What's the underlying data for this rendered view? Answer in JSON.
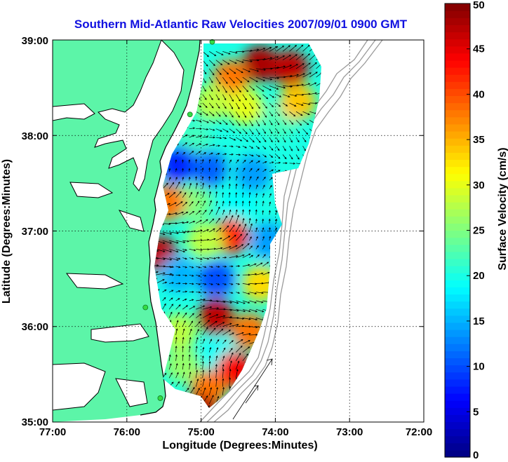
{
  "map": {
    "title": "Southern Mid-Atlantic Raw Velocities 2007/09/01 0900 GMT",
    "xlabel": "Longitude (Degrees:Minutes)",
    "ylabel": "Latitude (Degrees:Minutes)",
    "x_ticks": [
      "77:00",
      "76:00",
      "75:00",
      "74:00",
      "73:00",
      "72:00"
    ],
    "y_ticks": [
      "39:00",
      "38:00",
      "37:00",
      "36:00",
      "35:00"
    ],
    "lon_range": [
      -77,
      -72
    ],
    "lat_range": [
      35,
      39
    ],
    "grid": true,
    "colors": {
      "title": "#1010e0",
      "land": "#5cf5a8",
      "coast": "#000000",
      "bathymetry": "#999999",
      "station": "#33dd44"
    }
  },
  "colorbar": {
    "label": "Surface Velocity (cm/s)",
    "ticks": [
      "0",
      "5",
      "10",
      "15",
      "20",
      "25",
      "30",
      "35",
      "40",
      "45",
      "50"
    ],
    "range": [
      0,
      50
    ],
    "colormap": "jet"
  },
  "chart_data": {
    "type": "heatmap",
    "title": "Southern Mid-Atlantic Raw Velocities 2007/09/01 0900 GMT",
    "xlabel": "Longitude (Degrees:Minutes)",
    "ylabel": "Latitude (Degrees:Minutes)",
    "xlim": [
      -77,
      -72
    ],
    "ylim": [
      35,
      39
    ],
    "clim": [
      0,
      50
    ],
    "units": "cm/s",
    "stations": [
      {
        "lon": -74.85,
        "lat": 38.98
      },
      {
        "lon": -75.15,
        "lat": 38.22
      },
      {
        "lon": -75.75,
        "lat": 36.2
      },
      {
        "lon": -75.55,
        "lat": 35.25
      }
    ],
    "velocity_regions": [
      {
        "lon": -74.2,
        "lat": 38.75,
        "speed": 48
      },
      {
        "lon": -73.8,
        "lat": 38.7,
        "speed": 47
      },
      {
        "lon": -74.6,
        "lat": 38.6,
        "speed": 38
      },
      {
        "lon": -74.85,
        "lat": 38.35,
        "speed": 28
      },
      {
        "lon": -74.4,
        "lat": 38.3,
        "speed": 30
      },
      {
        "lon": -73.95,
        "lat": 38.15,
        "speed": 22
      },
      {
        "lon": -73.7,
        "lat": 38.35,
        "speed": 34
      },
      {
        "lon": -75.1,
        "lat": 37.95,
        "speed": 22
      },
      {
        "lon": -75.3,
        "lat": 37.7,
        "speed": 8
      },
      {
        "lon": -74.9,
        "lat": 37.65,
        "speed": 11
      },
      {
        "lon": -74.3,
        "lat": 37.6,
        "speed": 14
      },
      {
        "lon": -75.1,
        "lat": 37.3,
        "speed": 25
      },
      {
        "lon": -75.45,
        "lat": 37.3,
        "speed": 38
      },
      {
        "lon": -74.5,
        "lat": 37.25,
        "speed": 19
      },
      {
        "lon": -74.6,
        "lat": 36.95,
        "speed": 42
      },
      {
        "lon": -74.95,
        "lat": 36.9,
        "speed": 28
      },
      {
        "lon": -74.1,
        "lat": 36.9,
        "speed": 14
      },
      {
        "lon": -75.55,
        "lat": 36.75,
        "speed": 47
      },
      {
        "lon": -75.3,
        "lat": 36.55,
        "speed": 15
      },
      {
        "lon": -74.8,
        "lat": 36.5,
        "speed": 10
      },
      {
        "lon": -74.2,
        "lat": 36.45,
        "speed": 33
      },
      {
        "lon": -74.8,
        "lat": 36.1,
        "speed": 47
      },
      {
        "lon": -74.35,
        "lat": 35.95,
        "speed": 38
      },
      {
        "lon": -75.3,
        "lat": 35.95,
        "speed": 28
      },
      {
        "lon": -75.25,
        "lat": 35.6,
        "speed": 26
      },
      {
        "lon": -74.75,
        "lat": 35.7,
        "speed": 19
      },
      {
        "lon": -74.55,
        "lat": 35.55,
        "speed": 44
      },
      {
        "lon": -74.9,
        "lat": 35.35,
        "speed": 38
      },
      {
        "lon": -75.0,
        "lat": 35.1,
        "speed": 48
      }
    ]
  }
}
